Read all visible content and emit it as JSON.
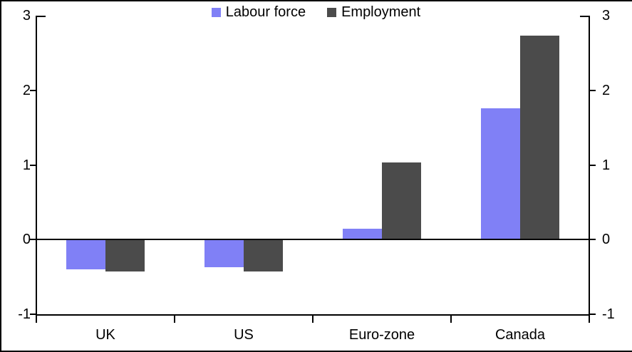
{
  "chart_data": {
    "type": "bar",
    "title": "",
    "categories": [
      "UK",
      "US",
      "Euro-zone",
      "Canada"
    ],
    "series": [
      {
        "name": "Labour force",
        "color": "#8080F6",
        "values": [
          -0.4,
          -0.37,
          0.15,
          1.76
        ]
      },
      {
        "name": "Employment",
        "color": "#4B4B4B",
        "values": [
          -0.43,
          -0.43,
          1.03,
          2.73
        ]
      }
    ],
    "y_axis": {
      "min": -1,
      "max": 3,
      "tick_values": [
        3,
        2,
        1,
        0,
        -1
      ],
      "left_tick_labels": [
        "3",
        "2",
        "1",
        "0",
        "-1"
      ],
      "right_tick_labels": [
        "3",
        "2",
        "1",
        "0",
        "-1"
      ]
    },
    "legend_position": "top-center",
    "zero_line": true,
    "grid": false,
    "frame_color": "#000000",
    "background_color": "#FFFFFF"
  }
}
